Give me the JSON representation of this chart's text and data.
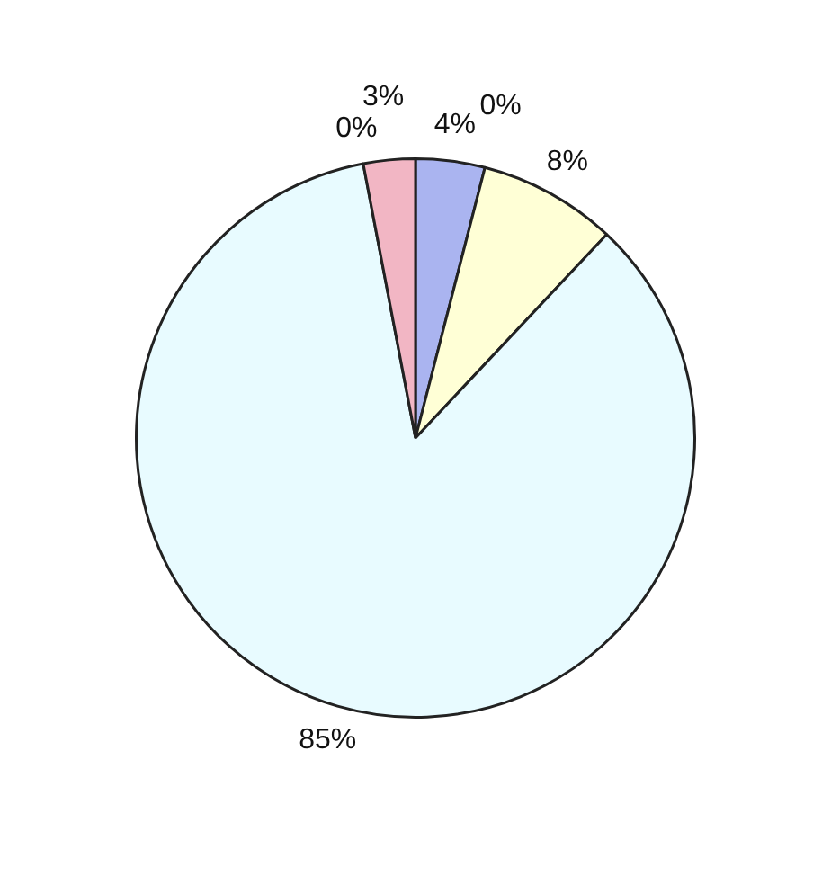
{
  "chart_data": {
    "type": "pie",
    "categories": [
      null,
      null,
      null,
      null,
      null,
      null
    ],
    "values": [
      4,
      0,
      8,
      85,
      0,
      3
    ],
    "colors": [
      "#aab4f0",
      "#c8f0c8",
      "#ffffd6",
      "#e8fbff",
      "#f0d0f0",
      "#f2b6c4"
    ],
    "value_labels": [
      "4%",
      "0%",
      "8%",
      "85%",
      "0%",
      "3%"
    ],
    "legend": false
  }
}
